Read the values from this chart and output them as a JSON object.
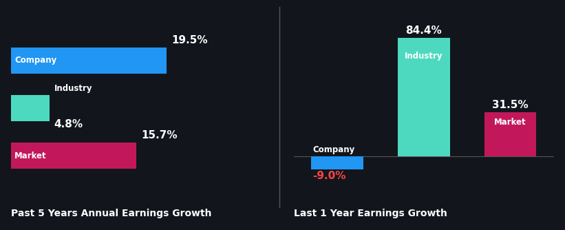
{
  "background_color": "#12161c",
  "left_panel": {
    "title": "Past 5 Years Annual Earnings Growth",
    "bars": [
      {
        "label": "Company",
        "value": 19.5,
        "color": "#2196f3",
        "label_inside": true,
        "value_above": true,
        "value_color": "#ffffff"
      },
      {
        "label": "Industry",
        "value": 4.8,
        "color": "#4dd9c0",
        "label_inside": false,
        "value_above": false,
        "value_color": "#ffffff"
      },
      {
        "label": "Market",
        "value": 15.7,
        "color": "#c2185b",
        "label_inside": true,
        "value_above": true,
        "value_color": "#ffffff"
      }
    ]
  },
  "right_panel": {
    "title": "Last 1 Year Earnings Growth",
    "bars": [
      {
        "label": "Company",
        "value": -9.0,
        "color": "#2196f3",
        "label_inside": false,
        "value_color": "#ff4444"
      },
      {
        "label": "Industry",
        "value": 84.4,
        "color": "#4dd9c0",
        "label_inside": true,
        "value_color": "#ffffff"
      },
      {
        "label": "Market",
        "value": 31.5,
        "color": "#c2185b",
        "label_inside": true,
        "value_color": "#ffffff"
      }
    ]
  },
  "title_fontsize": 10,
  "label_fontsize": 8.5,
  "value_fontsize": 11,
  "text_color": "#ffffff"
}
